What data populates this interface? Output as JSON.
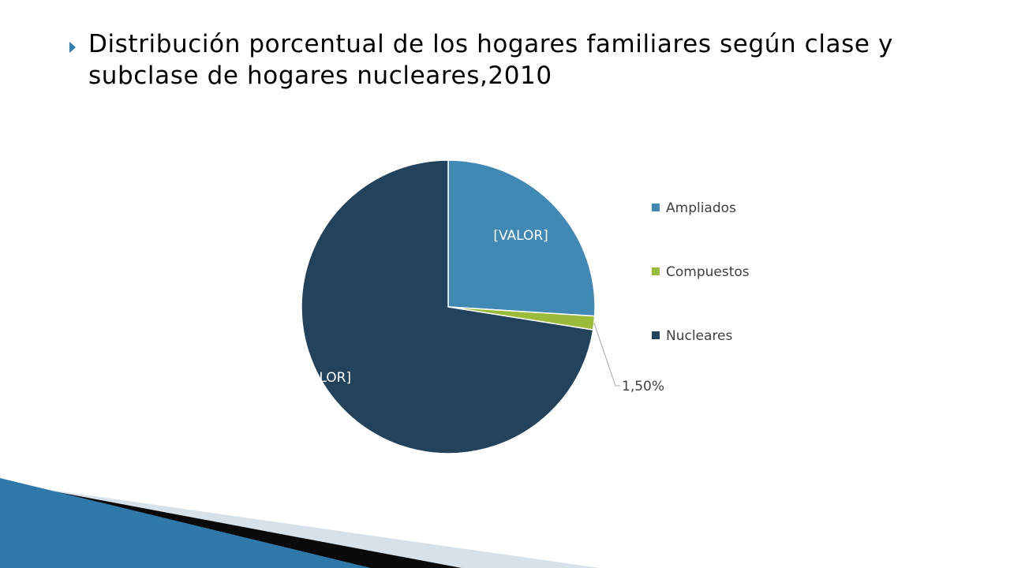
{
  "title": "Distribución porcentual de los hogares familiares según clase y subclase de hogares nucleares,2010",
  "colors": {
    "bullet": "#2e7fb0",
    "label_light": "#ffffff",
    "label_dark": "#404040",
    "leader_line": "#a6a6a6",
    "decor_blue": "#2f79aa",
    "decor_black": "#0a0a0a",
    "decor_light": "#d6e1ea"
  },
  "chart_data": {
    "type": "pie",
    "start_angle_deg": 0,
    "direction": "clockwise",
    "legend_position": "right",
    "slices": [
      {
        "name": "Ampliados",
        "value": 26.0,
        "label": "[VALOR]",
        "color": "#4189b5"
      },
      {
        "name": "Compuestos",
        "value": 1.5,
        "label": "1,50%",
        "color": "#9bbb3b"
      },
      {
        "name": "Nucleares",
        "value": 72.5,
        "label": "[VALOR]",
        "color": "#22435b"
      }
    ]
  }
}
